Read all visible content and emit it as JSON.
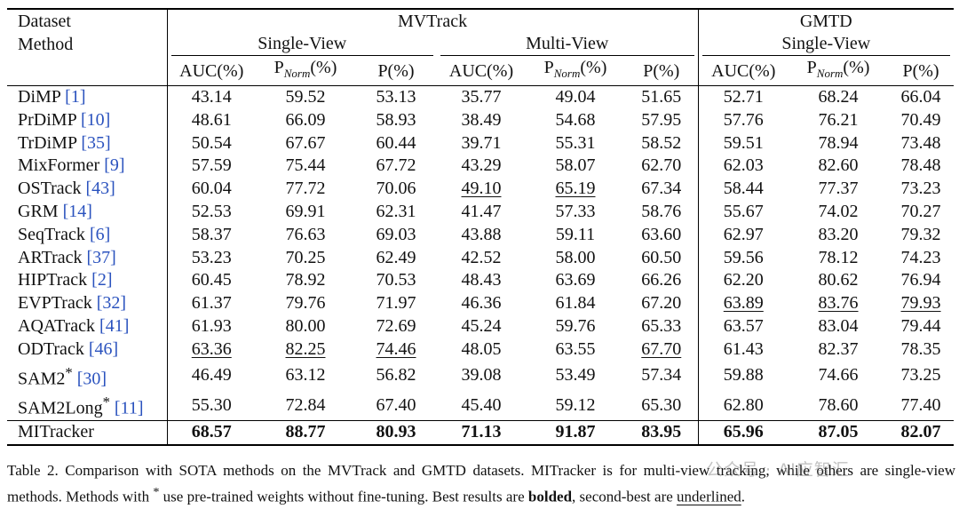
{
  "header": {
    "dataset_label": "Dataset",
    "method_label": "Method",
    "datasets": [
      "MVTrack",
      "GMTD"
    ],
    "views": [
      "Single-View",
      "Multi-View",
      "Single-View"
    ],
    "metrics": [
      "AUC(%)",
      "P",
      "Norm",
      "(%)",
      "P(%)"
    ]
  },
  "rows": [
    {
      "name": "DiMP",
      "ref": "1",
      "star": "",
      "values": [
        "43.14",
        "59.52",
        "53.13",
        "35.77",
        "49.04",
        "51.65",
        "52.71",
        "68.24",
        "66.04"
      ],
      "bold": [],
      "ul": []
    },
    {
      "name": "PrDiMP",
      "ref": "10",
      "star": "",
      "values": [
        "48.61",
        "66.09",
        "58.93",
        "38.49",
        "54.68",
        "57.95",
        "57.76",
        "76.21",
        "70.49"
      ],
      "bold": [],
      "ul": []
    },
    {
      "name": "TrDiMP",
      "ref": "35",
      "star": "",
      "values": [
        "50.54",
        "67.67",
        "60.44",
        "39.71",
        "55.31",
        "58.52",
        "59.51",
        "78.94",
        "73.48"
      ],
      "bold": [],
      "ul": []
    },
    {
      "name": "MixFormer",
      "ref": "9",
      "star": "",
      "values": [
        "57.59",
        "75.44",
        "67.72",
        "43.29",
        "58.07",
        "62.70",
        "62.03",
        "82.60",
        "78.48"
      ],
      "bold": [],
      "ul": []
    },
    {
      "name": "OSTrack",
      "ref": "43",
      "star": "",
      "values": [
        "60.04",
        "77.72",
        "70.06",
        "49.10",
        "65.19",
        "67.34",
        "58.44",
        "77.37",
        "73.23"
      ],
      "bold": [],
      "ul": [
        3,
        4
      ]
    },
    {
      "name": "GRM",
      "ref": "14",
      "star": "",
      "values": [
        "52.53",
        "69.91",
        "62.31",
        "41.47",
        "57.33",
        "58.76",
        "55.67",
        "74.02",
        "70.27"
      ],
      "bold": [],
      "ul": []
    },
    {
      "name": "SeqTrack",
      "ref": "6",
      "star": "",
      "values": [
        "58.37",
        "76.63",
        "69.03",
        "43.88",
        "59.11",
        "63.60",
        "62.97",
        "83.20",
        "79.32"
      ],
      "bold": [],
      "ul": []
    },
    {
      "name": "ARTrack",
      "ref": "37",
      "star": "",
      "values": [
        "53.23",
        "70.25",
        "62.49",
        "42.52",
        "58.00",
        "60.50",
        "59.56",
        "78.12",
        "74.23"
      ],
      "bold": [],
      "ul": []
    },
    {
      "name": "HIPTrack",
      "ref": "2",
      "star": "",
      "values": [
        "60.45",
        "78.92",
        "70.53",
        "48.43",
        "63.69",
        "66.26",
        "62.20",
        "80.62",
        "76.94"
      ],
      "bold": [],
      "ul": []
    },
    {
      "name": "EVPTrack",
      "ref": "32",
      "star": "",
      "values": [
        "61.37",
        "79.76",
        "71.97",
        "46.36",
        "61.84",
        "67.20",
        "63.89",
        "83.76",
        "79.93"
      ],
      "bold": [],
      "ul": [
        6,
        7,
        8
      ]
    },
    {
      "name": "AQATrack",
      "ref": "41",
      "star": "",
      "values": [
        "61.93",
        "80.00",
        "72.69",
        "45.24",
        "59.76",
        "65.33",
        "63.57",
        "83.04",
        "79.44"
      ],
      "bold": [],
      "ul": []
    },
    {
      "name": "ODTrack",
      "ref": "46",
      "star": "",
      "values": [
        "63.36",
        "82.25",
        "74.46",
        "48.05",
        "63.55",
        "67.70",
        "61.43",
        "82.37",
        "78.35"
      ],
      "bold": [],
      "ul": [
        0,
        1,
        2,
        5
      ]
    },
    {
      "name": "SAM2",
      "ref": "30",
      "star": "*",
      "values": [
        "46.49",
        "63.12",
        "56.82",
        "39.08",
        "53.49",
        "57.34",
        "59.88",
        "74.66",
        "73.25"
      ],
      "bold": [],
      "ul": []
    },
    {
      "name": "SAM2Long",
      "ref": "11",
      "star": "*",
      "values": [
        "55.30",
        "72.84",
        "67.40",
        "45.40",
        "59.12",
        "65.30",
        "62.80",
        "78.60",
        "77.40"
      ],
      "bold": [],
      "ul": []
    }
  ],
  "ours": {
    "name": "MITracker",
    "values": [
      "68.57",
      "88.77",
      "80.93",
      "71.13",
      "91.87",
      "83.95",
      "65.96",
      "87.05",
      "82.07"
    ]
  },
  "caption": {
    "part1": "Table 2. Comparison with SOTA methods on the MVTrack and GMTD datasets. MITracker is for multi-view tracking, while others are single-view methods. Methods with ",
    "star": "*",
    "part2": " use pre-trained weights without fine-tuning. Best results are ",
    "bolded": "bolded",
    "part3": ", second-best are ",
    "underlined": "underlined",
    "part4": "."
  },
  "watermark": "公众号 · AI应智汇"
}
